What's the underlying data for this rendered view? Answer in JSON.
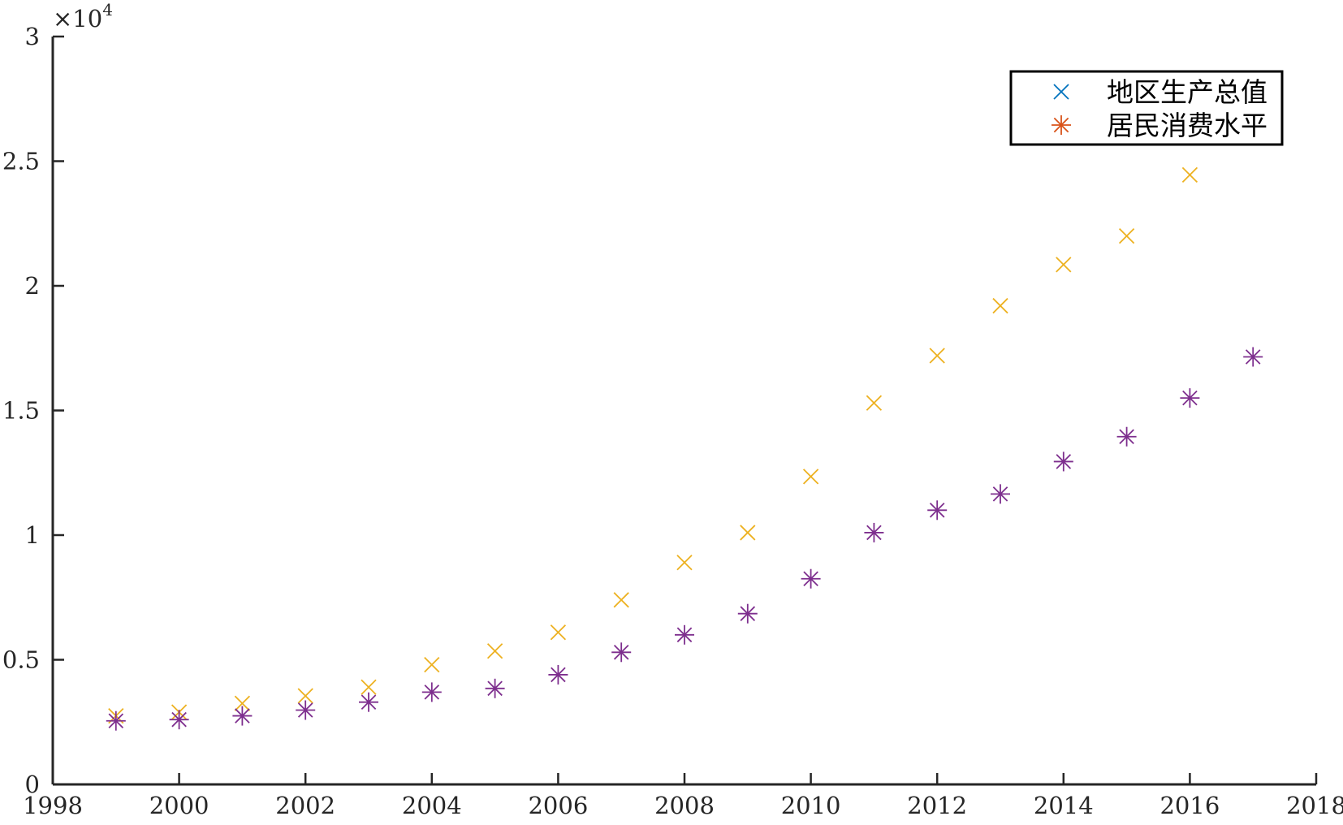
{
  "chart_data": {
    "type": "scatter",
    "title": "",
    "xlabel": "",
    "ylabel": "",
    "xlim": [
      1998,
      2018
    ],
    "ylim": [
      0,
      30000
    ],
    "x_ticks": [
      1998,
      2000,
      2002,
      2004,
      2006,
      2008,
      2010,
      2012,
      2014,
      2016,
      2018
    ],
    "y_ticks": [
      0,
      5000,
      10000,
      15000,
      20000,
      25000,
      30000
    ],
    "y_tick_labels": [
      "0",
      "0.5",
      "1",
      "1.5",
      "2",
      "2.5",
      "3"
    ],
    "y_exponent_label": "×10",
    "y_exponent_power": "4",
    "grid": false,
    "legend_position": "top-right",
    "legend": [
      {
        "label": "地区生产总值",
        "marker": "x",
        "color": "#0072BD"
      },
      {
        "label": "居民消费水平",
        "marker": "asterisk",
        "color": "#D95319"
      }
    ],
    "series": [
      {
        "marker": "x",
        "color": "#EDB120",
        "x": [
          1999,
          2000,
          2001,
          2002,
          2003,
          2004,
          2005,
          2006,
          2007,
          2008,
          2009,
          2010,
          2011,
          2012,
          2013,
          2014,
          2015,
          2016,
          2017
        ],
        "y": [
          2750,
          2900,
          3250,
          3550,
          3900,
          4800,
          5350,
          6100,
          7400,
          8900,
          10100,
          12350,
          15300,
          17200,
          19200,
          20850,
          22000,
          24450,
          null
        ]
      },
      {
        "marker": "asterisk",
        "color": "#7E2F8E",
        "x": [
          1999,
          2000,
          2001,
          2002,
          2003,
          2004,
          2005,
          2006,
          2007,
          2008,
          2009,
          2010,
          2011,
          2012,
          2013,
          2014,
          2015,
          2016,
          2017
        ],
        "y": [
          2550,
          2600,
          2750,
          2980,
          3300,
          3700,
          3850,
          4400,
          5300,
          6000,
          6850,
          8250,
          10100,
          11000,
          11650,
          12950,
          13950,
          15500,
          17150
        ]
      }
    ]
  }
}
